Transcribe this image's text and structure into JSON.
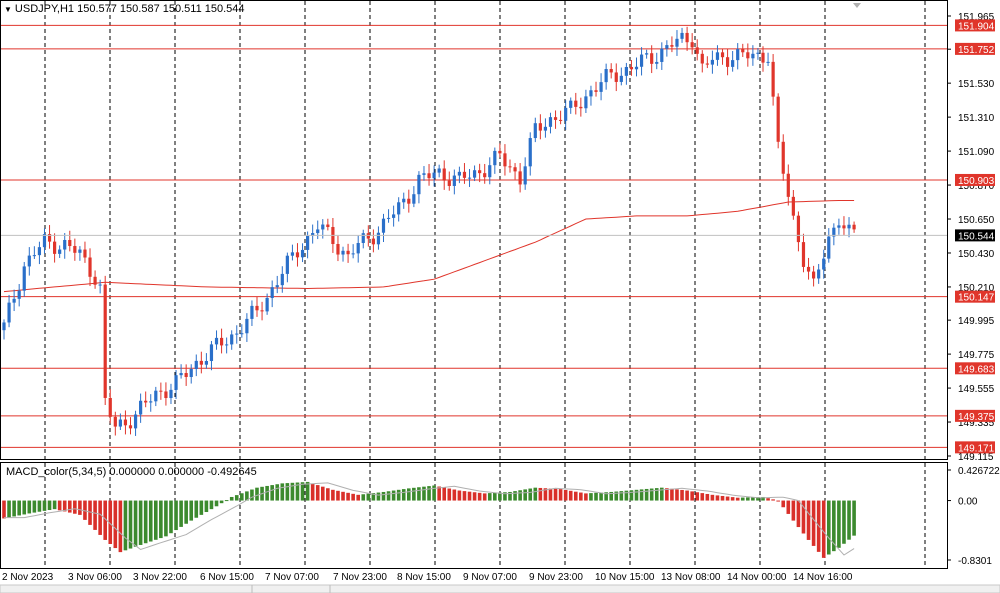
{
  "header": {
    "symbol": "USDJPY,H1",
    "open": "150.577",
    "high": "150.587",
    "low": "150.511",
    "close": "150.544"
  },
  "indicator": {
    "label": "MACD_color(5,34,5)",
    "values": "0.000000 0.000000 -0.492645"
  },
  "colors": {
    "bull": "#2a6fc9",
    "bear": "#e0352b",
    "macd_up": "#3c8a2e",
    "macd_down": "#d9302a",
    "level_line": "#e0352b",
    "ma": "#e0352b",
    "grid": "#000000",
    "price_tag": "#e0352b",
    "current_tag": "#000000"
  },
  "chart_data": [
    {
      "type": "candlestick",
      "y_ticks": [
        "151.965",
        "151.750",
        "151.530",
        "151.310",
        "151.090",
        "150.870",
        "150.650",
        "150.430",
        "150.210",
        "149.995",
        "149.775",
        "149.555",
        "149.335",
        "149.115"
      ],
      "ylim": [
        149.115,
        151.965
      ],
      "x_ticks": [
        "2 Nov 2023",
        "3 Nov 06:00",
        "3 Nov 22:00",
        "6 Nov 15:00",
        "7 Nov 07:00",
        "7 Nov 23:00",
        "8 Nov 15:00",
        "9 Nov 07:00",
        "9 Nov 23:00",
        "10 Nov 15:00",
        "13 Nov 08:00",
        "14 Nov 00:00",
        "14 Nov 16:00"
      ],
      "levels": [
        {
          "value": 151.904,
          "label": "151.904"
        },
        {
          "value": 151.752,
          "label": "151.752"
        },
        {
          "value": 150.903,
          "label": "150.903"
        },
        {
          "value": 150.147,
          "label": "150.147"
        },
        {
          "value": 149.683,
          "label": "149.683"
        },
        {
          "value": 149.375,
          "label": "149.375"
        },
        {
          "value": 149.171,
          "label": "149.171"
        }
      ],
      "current_price": {
        "value": 150.544,
        "label": "150.544"
      },
      "close_path": [
        [
          0,
          149.95
        ],
        [
          4,
          150.35
        ],
        [
          8,
          150.5
        ],
        [
          12,
          150.48
        ],
        [
          15,
          150.42
        ],
        [
          18,
          150.28
        ],
        [
          19,
          150.2
        ],
        [
          20,
          149.45
        ],
        [
          22,
          149.3
        ],
        [
          26,
          149.38
        ],
        [
          30,
          149.52
        ],
        [
          34,
          149.58
        ],
        [
          38,
          149.72
        ],
        [
          42,
          149.82
        ],
        [
          46,
          149.92
        ],
        [
          50,
          150.05
        ],
        [
          54,
          150.25
        ],
        [
          58,
          150.45
        ],
        [
          62,
          150.6
        ],
        [
          65,
          150.52
        ],
        [
          68,
          150.4
        ],
        [
          70,
          150.48
        ],
        [
          74,
          150.58
        ],
        [
          78,
          150.72
        ],
        [
          82,
          150.9
        ],
        [
          86,
          150.95
        ],
        [
          90,
          150.9
        ],
        [
          94,
          150.96
        ],
        [
          98,
          151.05
        ],
        [
          102,
          150.92
        ],
        [
          105,
          151.22
        ],
        [
          108,
          151.3
        ],
        [
          112,
          151.35
        ],
        [
          116,
          151.48
        ],
        [
          120,
          151.58
        ],
        [
          124,
          151.63
        ],
        [
          128,
          151.7
        ],
        [
          132,
          151.78
        ],
        [
          136,
          151.83
        ],
        [
          138,
          151.62
        ],
        [
          140,
          151.68
        ],
        [
          144,
          151.71
        ],
        [
          148,
          151.7
        ],
        [
          151,
          151.72
        ],
        [
          153,
          151.1
        ],
        [
          156,
          150.65
        ],
        [
          158,
          150.4
        ],
        [
          160,
          150.2
        ],
        [
          163,
          150.53
        ],
        [
          165,
          150.66
        ],
        [
          167,
          150.55
        ],
        [
          168,
          150.544
        ]
      ],
      "ma_path": [
        [
          0,
          150.18
        ],
        [
          20,
          150.24
        ],
        [
          40,
          150.21
        ],
        [
          60,
          150.2
        ],
        [
          75,
          150.21
        ],
        [
          85,
          150.26
        ],
        [
          95,
          150.38
        ],
        [
          105,
          150.5
        ],
        [
          115,
          150.65
        ],
        [
          125,
          150.67
        ],
        [
          135,
          150.67
        ],
        [
          145,
          150.7
        ],
        [
          155,
          150.76
        ],
        [
          165,
          150.77
        ],
        [
          168,
          150.77
        ]
      ]
    },
    {
      "type": "histogram",
      "name": "MACD_color(5,34,5)",
      "y_ticks": [
        "0.426722",
        "0.00",
        "-0.8301"
      ],
      "ylim": [
        -0.8301,
        0.426722
      ],
      "path": [
        [
          0,
          -0.25
        ],
        [
          5,
          -0.18
        ],
        [
          10,
          -0.12
        ],
        [
          15,
          -0.2
        ],
        [
          20,
          -0.55
        ],
        [
          23,
          -0.72
        ],
        [
          27,
          -0.62
        ],
        [
          32,
          -0.5
        ],
        [
          37,
          -0.28
        ],
        [
          42,
          -0.08
        ],
        [
          45,
          0.05
        ],
        [
          50,
          0.18
        ],
        [
          55,
          0.24
        ],
        [
          60,
          0.26
        ],
        [
          65,
          0.15
        ],
        [
          70,
          0.08
        ],
        [
          75,
          0.12
        ],
        [
          80,
          0.17
        ],
        [
          85,
          0.21
        ],
        [
          90,
          0.14
        ],
        [
          95,
          0.1
        ],
        [
          100,
          0.12
        ],
        [
          105,
          0.18
        ],
        [
          110,
          0.16
        ],
        [
          115,
          0.1
        ],
        [
          120,
          0.12
        ],
        [
          125,
          0.15
        ],
        [
          130,
          0.18
        ],
        [
          135,
          0.14
        ],
        [
          140,
          0.08
        ],
        [
          145,
          0.04
        ],
        [
          150,
          0.05
        ],
        [
          153,
          0.0
        ],
        [
          156,
          -0.28
        ],
        [
          159,
          -0.55
        ],
        [
          162,
          -0.8
        ],
        [
          165,
          -0.66
        ],
        [
          168,
          -0.49
        ]
      ]
    }
  ]
}
